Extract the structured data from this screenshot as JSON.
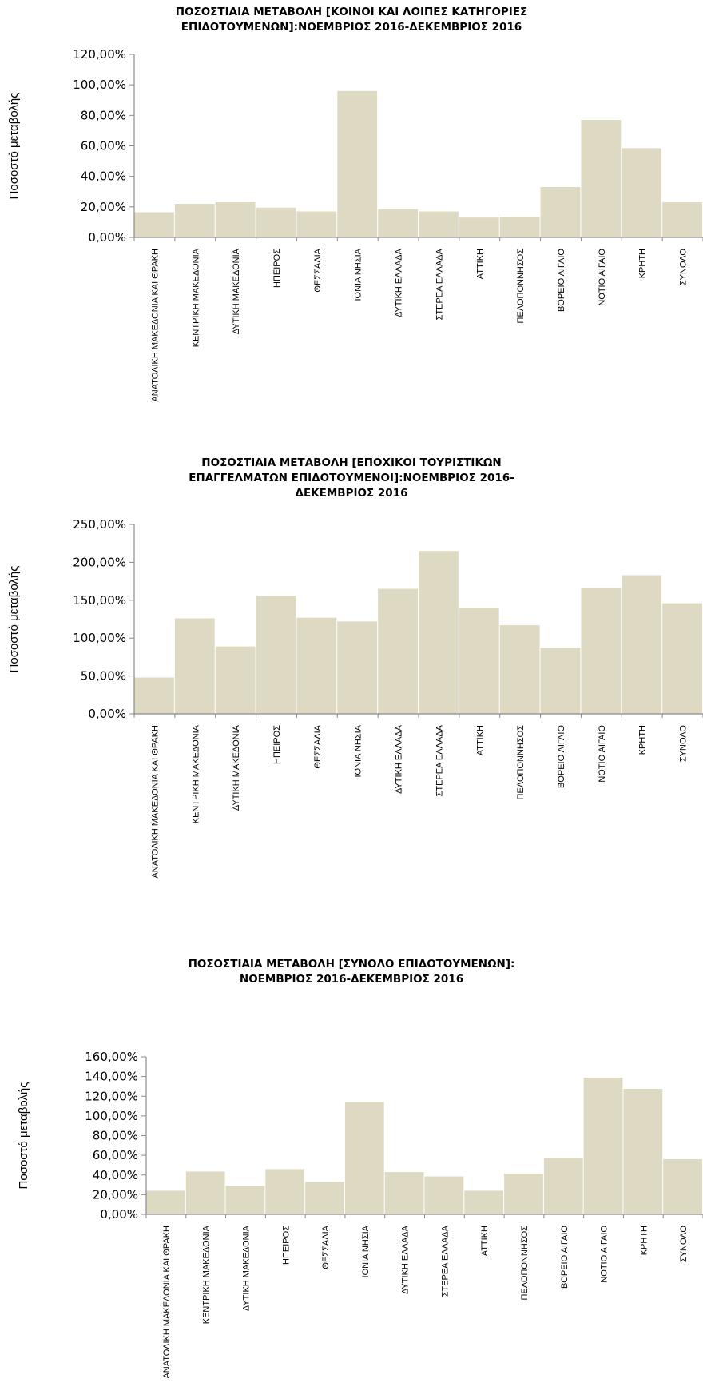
{
  "colors": {
    "bar": "#ddd9c3",
    "axis": "#8c8c8c"
  },
  "chart_data": [
    {
      "type": "bar",
      "title": "ΠΟΣΟΣΤΙΑΙΑ ΜΕΤΑΒΟΛΗ [ΚΟΙΝΟΙ ΚΑΙ ΛΟΙΠΕΣ ΚΑΤΗΓΟΡΙΕΣ ΕΠΙΔΟΤΟΥΜΕΝΩΝ]:ΝΟΕΜΒΡΙΟΣ 2016-ΔΕΚΕΜΒΡΙΟΣ 2016",
      "title_lines": [
        "ΠΟΣΟΣΤΙΑΙΑ ΜΕΤΑΒΟΛΗ [ΚΟΙΝΟΙ ΚΑΙ ΛΟΙΠΕΣ ΚΑΤΗΓΟΡΙΕΣ",
        "ΕΠΙΔΟΤΟΥΜΕΝΩΝ]:ΝΟΕΜΒΡΙΟΣ 2016-ΔΕΚΕΜΒΡΙΟΣ 2016"
      ],
      "ylabel": "Ποσοστό μεταβολής",
      "xlabel": "",
      "ylim": [
        0,
        120
      ],
      "yticks": [
        "0,00%",
        "20,00%",
        "40,00%",
        "60,00%",
        "80,00%",
        "100,00%",
        "120,00%"
      ],
      "grid": false,
      "categories": [
        "ΑΝΑΤΟΛΙΚΗ ΜΑΚΕΔΟΝΙΑ ΚΑΙ ΘΡΑΚΗ",
        "ΚΕΝΤΡΙΚΗ ΜΑΚΕΔΟΝΙΑ",
        "ΔΥΤΙΚΗ ΜΑΚΕΔΟΝΙΑ",
        "ΗΠΕΙΡΟΣ",
        "ΘΕΣΣΑΛΙΑ",
        "ΙΟΝΙΑ ΝΗΣΙΑ",
        "ΔΥΤΙΚΗ ΕΛΛΑΔΑ",
        "ΣΤΕΡΕΑ ΕΛΛΑΔΑ",
        "ΑΤΤΙΚΗ",
        "ΠΕΛΟΠΟΝΝΗΣΟΣ",
        "ΒΟΡΕΙΟ ΑΙΓΑΙΟ",
        "ΝΟΤΙΟ ΑΙΓΑΙΟ",
        "ΚΡΗΤΗ",
        "ΣΥΝΟΛΟ"
      ],
      "values": [
        16.5,
        22,
        23,
        19.5,
        17,
        96,
        18.5,
        17,
        13,
        13.5,
        33,
        77,
        58.5,
        23
      ]
    },
    {
      "type": "bar",
      "title": "ΠΟΣΟΣΤΙΑΙΑ ΜΕΤΑΒΟΛΗ [ΕΠΟΧΙΚΟΙ ΤΟΥΡΙΣΤΙΚΩΝ ΕΠΑΓΓΕΛΜΑΤΩΝ ΕΠΙΔΟΤΟΥΜΕΝΟΙ]:ΝΟΕΜΒΡΙΟΣ 2016-ΔΕΚΕΜΒΡΙΟΣ 2016",
      "title_lines": [
        "ΠΟΣΟΣΤΙΑΙΑ ΜΕΤΑΒΟΛΗ [ΕΠΟΧΙΚΟΙ ΤΟΥΡΙΣΤΙΚΩΝ",
        "ΕΠΑΓΓΕΛΜΑΤΩΝ ΕΠΙΔΟΤΟΥΜΕΝΟΙ]:ΝΟΕΜΒΡΙΟΣ 2016-",
        "ΔΕΚΕΜΒΡΙΟΣ 2016"
      ],
      "ylabel": "Ποσοστό μεταβολής",
      "xlabel": "",
      "ylim": [
        0,
        250
      ],
      "yticks": [
        "0,00%",
        "50,00%",
        "100,00%",
        "150,00%",
        "200,00%",
        "250,00%"
      ],
      "grid": false,
      "categories": [
        "ΑΝΑΤΟΛΙΚΗ ΜΑΚΕΔΟΝΙΑ ΚΑΙ ΘΡΑΚΗ",
        "ΚΕΝΤΡΙΚΗ ΜΑΚΕΔΟΝΙΑ",
        "ΔΥΤΙΚΗ ΜΑΚΕΔΟΝΙΑ",
        "ΗΠΕΙΡΟΣ",
        "ΘΕΣΣΑΛΙΑ",
        "ΙΟΝΙΑ ΝΗΣΙΑ",
        "ΔΥΤΙΚΗ ΕΛΛΑΔΑ",
        "ΣΤΕΡΕΑ ΕΛΛΑΔΑ",
        "ΑΤΤΙΚΗ",
        "ΠΕΛΟΠΟΝΝΗΣΟΣ",
        "ΒΟΡΕΙΟ ΑΙΓΑΙΟ",
        "ΝΟΤΙΟ ΑΙΓΑΙΟ",
        "ΚΡΗΤΗ",
        "ΣΥΝΟΛΟ"
      ],
      "values": [
        48,
        126,
        89,
        156,
        127,
        122,
        165,
        215,
        140,
        117,
        87,
        166,
        183,
        146
      ]
    },
    {
      "type": "bar",
      "title": "ΠΟΣΟΣΤΙΑΙΑ ΜΕΤΑΒΟΛΗ [ΣΥΝΟΛΟ ΕΠΙΔΟΤΟΥΜΕΝΩΝ]: ΝΟΕΜΒΡΙΟΣ 2016-ΔΕΚΕΜΒΡΙΟΣ 2016",
      "title_lines": [
        "ΠΟΣΟΣΤΙΑΙΑ ΜΕΤΑΒΟΛΗ [ΣΥΝΟΛΟ ΕΠΙΔΟΤΟΥΜΕΝΩΝ]:",
        "ΝΟΕΜΒΡΙΟΣ 2016-ΔΕΚΕΜΒΡΙΟΣ 2016"
      ],
      "ylabel": "Ποσοστό μεταβολής",
      "xlabel": "",
      "ylim": [
        0,
        160
      ],
      "yticks": [
        "0,00%",
        "20,00%",
        "40,00%",
        "60,00%",
        "80,00%",
        "100,00%",
        "120,00%",
        "140,00%",
        "160,00%"
      ],
      "grid": false,
      "categories": [
        "ΑΝΑΤΟΛΙΚΗ ΜΑΚΕΔΟΝΙΑ ΚΑΙ ΘΡΑΚΗ",
        "ΚΕΝΤΡΙΚΗ ΜΑΚΕΔΟΝΙΑ",
        "ΔΥΤΙΚΗ ΜΑΚΕΔΟΝΙΑ",
        "ΗΠΕΙΡΟΣ",
        "ΘΕΣΣΑΛΙΑ",
        "ΙΟΝΙΑ ΝΗΣΙΑ",
        "ΔΥΤΙΚΗ ΕΛΛΑΔΑ",
        "ΣΤΕΡΕΑ ΕΛΛΑΔΑ",
        "ΑΤΤΙΚΗ",
        "ΠΕΛΟΠΟΝΝΗΣΟΣ",
        "ΒΟΡΕΙΟ ΑΙΓΑΙΟ",
        "ΝΟΤΙΟ ΑΙΓΑΙΟ",
        "ΚΡΗΤΗ",
        "ΣΥΝΟΛΟ"
      ],
      "values": [
        24,
        43.5,
        29,
        46,
        33,
        114,
        43,
        38.5,
        24,
        41.5,
        57.5,
        139,
        127.5,
        56
      ]
    }
  ]
}
